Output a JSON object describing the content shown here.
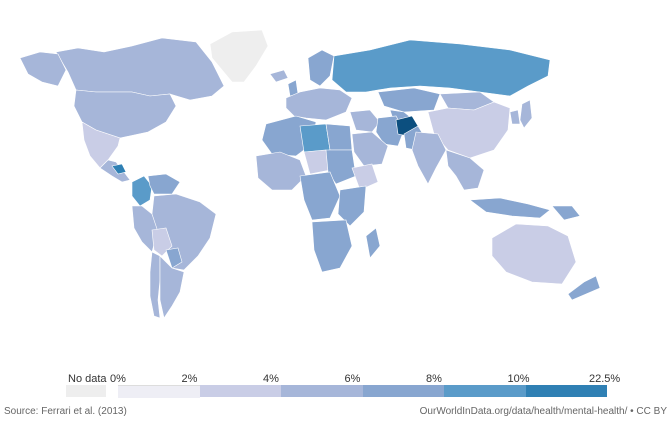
{
  "legend": {
    "no_data_label": "No data",
    "no_data_color": "#eeeeee",
    "ticks": [
      "0%",
      "2%",
      "4%",
      "6%",
      "8%",
      "10%",
      "22.5%"
    ],
    "colors": [
      "#eeeef5",
      "#c9cde6",
      "#a6b6d9",
      "#88a6d0",
      "#5a9bc9",
      "#2f80b4",
      "#0c4f7f"
    ]
  },
  "footer": {
    "source": "Source: Ferrari et al. (2013)",
    "url": "OurWorldInData.org/data/health/mental-health/ • CC BY"
  },
  "regions": [
    {
      "name": "greenland",
      "level": -1
    },
    {
      "name": "canada",
      "level": 2
    },
    {
      "name": "alaska",
      "level": 2
    },
    {
      "name": "usa",
      "level": 2
    },
    {
      "name": "mexico",
      "level": 1
    },
    {
      "name": "central-america",
      "level": 2
    },
    {
      "name": "honduras",
      "level": 5
    },
    {
      "name": "colombia",
      "level": 4
    },
    {
      "name": "venezuela",
      "level": 3
    },
    {
      "name": "brazil",
      "level": 2
    },
    {
      "name": "peru",
      "level": 2
    },
    {
      "name": "bolivia",
      "level": 1
    },
    {
      "name": "argentina",
      "level": 2
    },
    {
      "name": "chile",
      "level": 2
    },
    {
      "name": "paraguay",
      "level": 3
    },
    {
      "name": "iceland",
      "level": 2
    },
    {
      "name": "uk",
      "level": 3
    },
    {
      "name": "western-europe",
      "level": 2
    },
    {
      "name": "scandinavia",
      "level": 3
    },
    {
      "name": "russia",
      "level": 4
    },
    {
      "name": "kazakhstan",
      "level": 3
    },
    {
      "name": "central-asia",
      "level": 3
    },
    {
      "name": "mongolia",
      "level": 2
    },
    {
      "name": "china",
      "level": 1
    },
    {
      "name": "middle-east",
      "level": 2
    },
    {
      "name": "iran",
      "level": 3
    },
    {
      "name": "afghanistan",
      "level": 6
    },
    {
      "name": "pakistan",
      "level": 3
    },
    {
      "name": "india",
      "level": 2
    },
    {
      "name": "southeast-asia",
      "level": 2
    },
    {
      "name": "indonesia",
      "level": 3
    },
    {
      "name": "japan",
      "level": 2
    },
    {
      "name": "korea",
      "level": 2
    },
    {
      "name": "north-africa",
      "level": 3
    },
    {
      "name": "libya",
      "level": 4
    },
    {
      "name": "egypt",
      "level": 3
    },
    {
      "name": "west-africa",
      "level": 2
    },
    {
      "name": "chad",
      "level": 1
    },
    {
      "name": "sudan",
      "level": 3
    },
    {
      "name": "ethiopia",
      "level": 1
    },
    {
      "name": "east-africa",
      "level": 3
    },
    {
      "name": "central-africa",
      "level": 3
    },
    {
      "name": "southern-africa",
      "level": 3
    },
    {
      "name": "madagascar",
      "level": 3
    },
    {
      "name": "saudi-arabia",
      "level": 2
    },
    {
      "name": "australia",
      "level": 1
    },
    {
      "name": "new-zealand",
      "level": 3
    },
    {
      "name": "papua",
      "level": 3
    }
  ]
}
